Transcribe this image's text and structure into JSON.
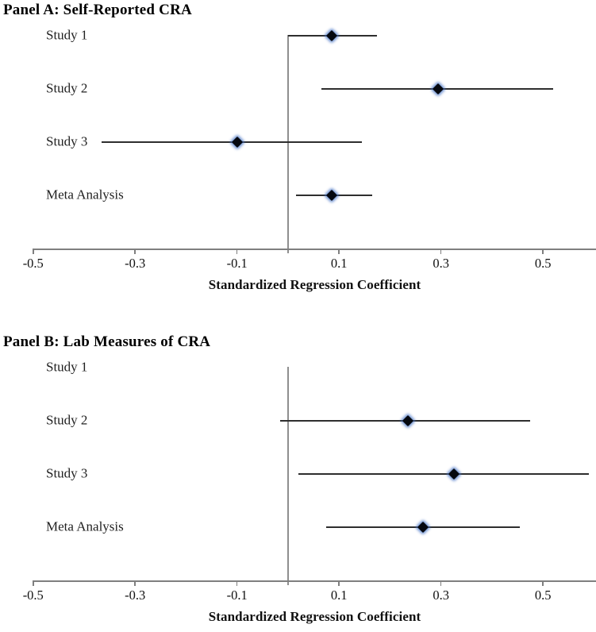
{
  "figure": {
    "background": "#ffffff",
    "description_visible_text_only": "Two stacked forest plots of standardized regression coefficients"
  },
  "appearance": {
    "marker_color": "#05080f",
    "marker_glow_color": "#4472c4",
    "ci_line_color": "#2e2e2e",
    "axis_color": "#7f7f7f",
    "reference_line_color": "#8f8f8f",
    "text_color": "#000000"
  },
  "chart_data": [
    {
      "type": "scatter",
      "subtype": "forest-plot",
      "title": "Panel A: Self-Reported CRA",
      "xlabel": "Standardized Regression Coefficient",
      "ylabel": "",
      "x_ticks": [
        -0.5,
        -0.3,
        -0.1,
        0.1,
        0.3,
        0.5
      ],
      "x_tick_labels": [
        "-0.5",
        "-0.3",
        "-0.1",
        "0.1",
        "0.3",
        "0.5"
      ],
      "xlim": [
        -0.565,
        0.604
      ],
      "reference_line_x": 0,
      "grid": false,
      "legend": false,
      "rows": [
        {
          "label": "Study 1",
          "estimate": 0.085,
          "ci_low": 0.0,
          "ci_high": 0.175
        },
        {
          "label": "Study 2",
          "estimate": 0.295,
          "ci_low": 0.065,
          "ci_high": 0.52
        },
        {
          "label": "Study 3",
          "estimate": -0.1,
          "ci_low": -0.365,
          "ci_high": 0.145
        },
        {
          "label": "Meta Analysis",
          "estimate": 0.085,
          "ci_low": 0.015,
          "ci_high": 0.165
        }
      ]
    },
    {
      "type": "scatter",
      "subtype": "forest-plot",
      "title": "Panel B: Lab Measures of CRA",
      "xlabel": "Standardized Regression Coefficient",
      "ylabel": "",
      "x_ticks": [
        -0.5,
        -0.3,
        -0.1,
        0.1,
        0.3,
        0.5
      ],
      "x_tick_labels": [
        "-0.5",
        "-0.3",
        "-0.1",
        "0.1",
        "0.3",
        "0.5"
      ],
      "xlim": [
        -0.565,
        0.604
      ],
      "reference_line_x": 0,
      "grid": false,
      "legend": false,
      "rows": [
        {
          "label": "Study 1",
          "estimate": null,
          "ci_low": null,
          "ci_high": null
        },
        {
          "label": "Study 2",
          "estimate": 0.235,
          "ci_low": -0.015,
          "ci_high": 0.475
        },
        {
          "label": "Study 3",
          "estimate": 0.325,
          "ci_low": 0.02,
          "ci_high": 0.59
        },
        {
          "label": "Meta Analysis",
          "estimate": 0.265,
          "ci_low": 0.075,
          "ci_high": 0.455
        }
      ]
    }
  ]
}
